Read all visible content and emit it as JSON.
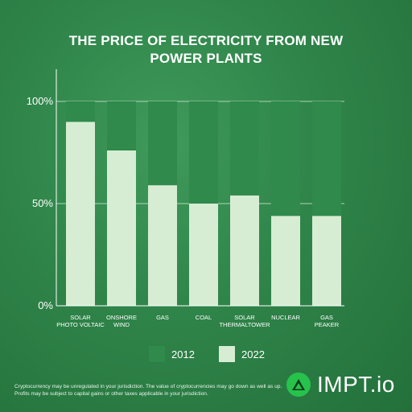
{
  "title_lines": [
    "THE PRICE OF ELECTRICITY FROM NEW",
    "POWER PLANTS"
  ],
  "chart_data": {
    "type": "bar",
    "stacked": true,
    "title": "THE PRICE OF ELECTRICITY FROM NEW POWER PLANTS",
    "categories": [
      [
        "SOLAR",
        "PHOTO VOLTAIC"
      ],
      [
        "ONSHORE",
        "WIND"
      ],
      [
        "GAS"
      ],
      [
        "COAL"
      ],
      [
        "SOLAR",
        "THERMALTOWER"
      ],
      [
        "NUCLEAR"
      ],
      [
        "GAS",
        "PEAKER"
      ]
    ],
    "series": [
      {
        "name": "2022",
        "color": "#d6edd3",
        "values": [
          90,
          76,
          59,
          50,
          54,
          44,
          44
        ]
      },
      {
        "name": "2012",
        "color": "#2f8a4b",
        "values": [
          10,
          24,
          41,
          50,
          46,
          56,
          56
        ]
      }
    ],
    "ylim": [
      0,
      100
    ],
    "yticks": [
      {
        "value": 0,
        "label": "0%"
      },
      {
        "value": 50,
        "label": "50%"
      },
      {
        "value": 100,
        "label": "100%"
      }
    ],
    "grid": true,
    "legend": "bottom-center"
  },
  "legend": [
    {
      "label": "2012",
      "color": "#2f8a4b"
    },
    {
      "label": "2022",
      "color": "#d6edd3"
    }
  ],
  "disclaimer": "Cryptocurrency may be unregulated in your jurisdiction. The value of cryptocurrencies may go down as well as up. Profits may be subject to capital gains or other taxes applicable in your jurisdiction.",
  "logo": {
    "text": "IMPT.io",
    "icon": "impt-logo-icon"
  }
}
